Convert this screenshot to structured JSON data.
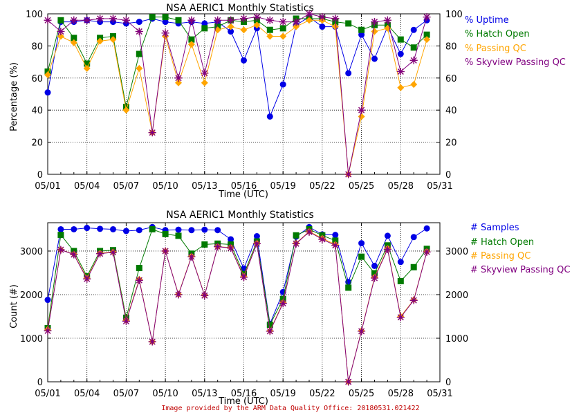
{
  "credit": "Image provided by the ARM Data Quality Office: 20180531.021422",
  "colors": {
    "blue": "#0000e6",
    "green": "#007a00",
    "orange": "#ffa500",
    "purple": "#800080",
    "brown": "#b22222",
    "axis": "#000000"
  },
  "chart_data": [
    {
      "type": "line",
      "title": "NSA AERIC1 Monthly Statistics",
      "xlabel": "Time (UTC)",
      "ylabel": "Percentage (%)",
      "xlim": [
        1,
        31
      ],
      "ylim": [
        0,
        100
      ],
      "yticks": [
        0,
        20,
        40,
        60,
        80,
        100
      ],
      "xticks": [
        1,
        4,
        7,
        10,
        13,
        16,
        19,
        22,
        25,
        28,
        31
      ],
      "xtick_labels": [
        "05/01",
        "05/04",
        "05/07",
        "05/10",
        "05/13",
        "05/16",
        "05/19",
        "05/22",
        "05/25",
        "05/28",
        "05/31"
      ],
      "legend": [
        {
          "label": "% Uptime",
          "color": "#0000e6"
        },
        {
          "label": "% Hatch Open",
          "color": "#007a00"
        },
        {
          "label": "% Passing QC",
          "color": "#ffa500"
        },
        {
          "label": "% Skyview Passing QC",
          "color": "#800080"
        }
      ],
      "legend_position": "right",
      "series": [
        {
          "name": "% Uptime",
          "marker": "circle",
          "color": "#0000e6",
          "x": [
            1,
            2,
            3,
            4,
            5,
            6,
            7,
            8,
            9,
            10,
            11,
            12,
            13,
            14,
            15,
            16,
            17,
            18,
            19,
            20,
            21,
            22,
            23,
            24,
            25,
            26,
            27,
            28,
            29,
            30
          ],
          "y": [
            51,
            95,
            95,
            96,
            95,
            95,
            94,
            95,
            97,
            95,
            94,
            95,
            94,
            95,
            89,
            71,
            91,
            36,
            56,
            93,
            98,
            92,
            92,
            63,
            87,
            72,
            92,
            75,
            90,
            96
          ]
        },
        {
          "name": "% Hatch Open",
          "marker": "square",
          "color": "#007a00",
          "x": [
            1,
            2,
            3,
            4,
            5,
            6,
            7,
            8,
            9,
            10,
            11,
            12,
            13,
            14,
            15,
            16,
            17,
            18,
            19,
            20,
            21,
            22,
            23,
            24,
            25,
            26,
            27,
            28,
            29,
            30
          ],
          "y": [
            64,
            96,
            85,
            69,
            85,
            86,
            42,
            75,
            98,
            98,
            96,
            84,
            91,
            92,
            96,
            95,
            96,
            90,
            91,
            97,
            97,
            97,
            95,
            94,
            90,
            93,
            93,
            84,
            79,
            87
          ]
        },
        {
          "name": "% Passing QC",
          "marker": "diamond",
          "color": "#ffa500",
          "x": [
            1,
            2,
            3,
            4,
            5,
            6,
            7,
            8,
            9,
            10,
            11,
            12,
            13,
            14,
            15,
            16,
            17,
            18,
            19,
            20,
            21,
            22,
            23,
            24,
            25,
            26,
            27,
            28,
            29,
            30
          ],
          "y": [
            62,
            86,
            82,
            66,
            83,
            84,
            40,
            66,
            26,
            86,
            57,
            81,
            57,
            90,
            92,
            90,
            93,
            86,
            86,
            92,
            96,
            96,
            92,
            0,
            36,
            89,
            91,
            54,
            56,
            84
          ]
        },
        {
          "name": "% Skyview Passing QC",
          "marker": "star",
          "color": "#800080",
          "x": [
            1,
            2,
            3,
            4,
            5,
            6,
            7,
            8,
            9,
            10,
            11,
            12,
            13,
            14,
            15,
            16,
            17,
            18,
            19,
            20,
            21,
            22,
            23,
            24,
            25,
            26,
            27,
            28,
            29,
            30
          ],
          "y": [
            96,
            89,
            96,
            96,
            97,
            97,
            96,
            89,
            26,
            88,
            60,
            96,
            63,
            96,
            96,
            97,
            98,
            96,
            95,
            95,
            100,
            98,
            97,
            0,
            40,
            95,
            96,
            64,
            71,
            98
          ]
        }
      ]
    },
    {
      "type": "line",
      "title": "NSA AERIC1 Monthly Statistics",
      "xlabel": "Time (UTC)",
      "ylabel": "Count (#)",
      "xlim": [
        1,
        31
      ],
      "ylim": [
        0,
        3650
      ],
      "yticks": [
        0,
        1000,
        2000,
        3000
      ],
      "xticks": [
        1,
        4,
        7,
        10,
        13,
        16,
        19,
        22,
        25,
        28,
        31
      ],
      "xtick_labels": [
        "05/01",
        "05/04",
        "05/07",
        "05/10",
        "05/13",
        "05/16",
        "05/19",
        "05/22",
        "05/25",
        "05/28",
        "05/31"
      ],
      "legend": [
        {
          "label": "# Samples",
          "color": "#0000e6"
        },
        {
          "label": "# Hatch Open",
          "color": "#007a00"
        },
        {
          "label": "# Passing QC",
          "color": "#ffa500"
        },
        {
          "label": "# Skyview Passing QC",
          "color": "#800080"
        }
      ],
      "legend_position": "right",
      "series": [
        {
          "name": "# Samples",
          "marker": "circle",
          "color": "#0000e6",
          "x": [
            1,
            2,
            3,
            4,
            5,
            6,
            7,
            8,
            9,
            10,
            11,
            12,
            13,
            14,
            15,
            16,
            17,
            18,
            19,
            20,
            21,
            22,
            23,
            24,
            25,
            26,
            27,
            28,
            29,
            30
          ],
          "y": [
            1880,
            3500,
            3500,
            3530,
            3510,
            3500,
            3460,
            3480,
            3550,
            3480,
            3490,
            3480,
            3490,
            3480,
            3270,
            2600,
            3340,
            1330,
            2060,
            3330,
            3550,
            3380,
            3370,
            2290,
            3180,
            2660,
            3350,
            2750,
            3320,
            3520
          ]
        },
        {
          "name": "# Hatch Open",
          "marker": "square",
          "color": "#007a00",
          "x": [
            1,
            2,
            3,
            4,
            5,
            6,
            7,
            8,
            9,
            10,
            11,
            12,
            13,
            14,
            15,
            16,
            17,
            18,
            19,
            20,
            21,
            22,
            23,
            24,
            25,
            26,
            27,
            28,
            29,
            30
          ],
          "y": [
            1230,
            3370,
            3000,
            2420,
            3000,
            3020,
            1470,
            2610,
            3500,
            3390,
            3350,
            2940,
            3150,
            3170,
            3150,
            2470,
            3220,
            1310,
            1900,
            3360,
            3500,
            3360,
            3240,
            2160,
            2870,
            2490,
            3130,
            2310,
            2630,
            3050
          ]
        },
        {
          "name": "# Passing QC",
          "marker": "diamond",
          "color": "#ffa500",
          "x": [
            1,
            2,
            3,
            4,
            5,
            6,
            7,
            8,
            9,
            10,
            11,
            12,
            13,
            14,
            15,
            16,
            17,
            18,
            19,
            20,
            21,
            22,
            23,
            24,
            25,
            26,
            27,
            28,
            29,
            30
          ],
          "y": [
            1200,
            3030,
            2930,
            2380,
            2950,
            2980,
            1410,
            2350,
            920,
            3000,
            2010,
            2880,
            1990,
            3100,
            3080,
            2420,
            3180,
            1170,
            1820,
            3180,
            3450,
            3290,
            3150,
            0,
            1170,
            2400,
            3060,
            1500,
            1880,
            2990
          ]
        },
        {
          "name": "# Skyview Passing QC",
          "marker": "star",
          "color": "#800080",
          "x": [
            1,
            2,
            3,
            4,
            5,
            6,
            7,
            8,
            9,
            10,
            11,
            12,
            13,
            14,
            15,
            16,
            17,
            18,
            19,
            20,
            21,
            22,
            23,
            24,
            25,
            26,
            27,
            28,
            29,
            30
          ],
          "y": [
            1170,
            3030,
            2920,
            2360,
            2940,
            2970,
            1390,
            2330,
            920,
            3000,
            2000,
            2870,
            1980,
            3100,
            3070,
            2400,
            3170,
            1160,
            1800,
            3170,
            3440,
            3270,
            3130,
            0,
            1160,
            2380,
            3040,
            1480,
            1870,
            2980
          ]
        }
      ]
    }
  ]
}
